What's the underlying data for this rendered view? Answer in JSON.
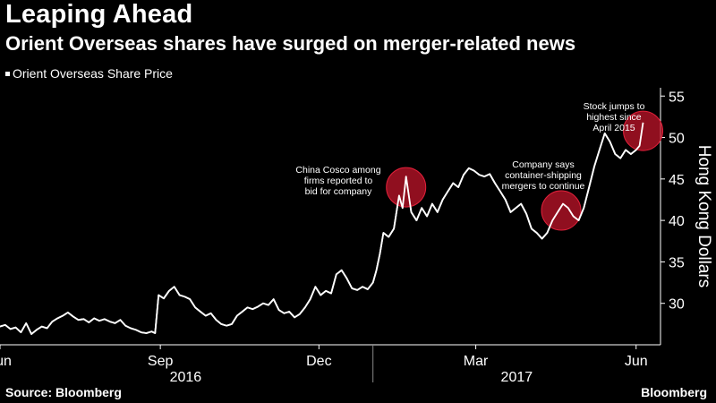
{
  "header": {
    "title": "Leaping Ahead",
    "subtitle": "Orient Overseas shares have surged on merger-related news"
  },
  "footer": {
    "source": "Source: Bloomberg",
    "brand": "Bloomberg"
  },
  "colors": {
    "background": "#000000",
    "line": "#ffffff",
    "highlight": "#c0142a"
  },
  "chart_data": {
    "type": "line",
    "title": "Leaping Ahead",
    "subtitle": "Orient Overseas shares have surged on merger-related news",
    "legend": [
      "Orient Overseas Share Price"
    ],
    "legend_position": "top-left",
    "ylabel": "Hong Kong Dollars",
    "ylim": [
      25,
      56
    ],
    "yticks": [
      30,
      35,
      40,
      45,
      50,
      55
    ],
    "xrange": [
      "2016-06-01",
      "2017-06-15"
    ],
    "xticks": [
      {
        "date": "2016-06-01",
        "label": "Jun"
      },
      {
        "date": "2016-09-01",
        "label": "Sep"
      },
      {
        "date": "2016-12-01",
        "label": "Dec"
      },
      {
        "date": "2017-03-01",
        "label": "Mar"
      },
      {
        "date": "2017-06-01",
        "label": "Jun"
      }
    ],
    "year_labels": [
      {
        "text": "2016",
        "from": "2016-06-01",
        "to": "2016-12-31"
      },
      {
        "text": "2017",
        "from": "2017-01-01",
        "to": "2017-06-15"
      }
    ],
    "grid": false,
    "series": [
      {
        "name": "Orient Overseas Share Price",
        "points": [
          [
            "2016-06-01",
            27.2
          ],
          [
            "2016-06-04",
            27.4
          ],
          [
            "2016-06-07",
            26.9
          ],
          [
            "2016-06-10",
            27.1
          ],
          [
            "2016-06-13",
            26.5
          ],
          [
            "2016-06-16",
            27.6
          ],
          [
            "2016-06-19",
            26.3
          ],
          [
            "2016-06-22",
            26.8
          ],
          [
            "2016-06-25",
            27.2
          ],
          [
            "2016-06-28",
            27.0
          ],
          [
            "2016-07-01",
            27.8
          ],
          [
            "2016-07-04",
            28.2
          ],
          [
            "2016-07-07",
            28.5
          ],
          [
            "2016-07-10",
            28.9
          ],
          [
            "2016-07-13",
            28.4
          ],
          [
            "2016-07-16",
            28.0
          ],
          [
            "2016-07-19",
            28.1
          ],
          [
            "2016-07-22",
            27.7
          ],
          [
            "2016-07-25",
            28.2
          ],
          [
            "2016-07-28",
            27.9
          ],
          [
            "2016-07-31",
            28.1
          ],
          [
            "2016-08-03",
            27.8
          ],
          [
            "2016-08-06",
            27.6
          ],
          [
            "2016-08-09",
            28.0
          ],
          [
            "2016-08-12",
            27.3
          ],
          [
            "2016-08-15",
            27.0
          ],
          [
            "2016-08-18",
            26.8
          ],
          [
            "2016-08-21",
            26.5
          ],
          [
            "2016-08-24",
            26.4
          ],
          [
            "2016-08-27",
            26.6
          ],
          [
            "2016-08-29",
            26.4
          ],
          [
            "2016-08-31",
            31.0
          ],
          [
            "2016-09-03",
            30.6
          ],
          [
            "2016-09-06",
            31.5
          ],
          [
            "2016-09-09",
            32.0
          ],
          [
            "2016-09-12",
            31.0
          ],
          [
            "2016-09-15",
            30.8
          ],
          [
            "2016-09-18",
            30.5
          ],
          [
            "2016-09-21",
            29.5
          ],
          [
            "2016-09-24",
            29.0
          ],
          [
            "2016-09-27",
            28.5
          ],
          [
            "2016-09-30",
            28.8
          ],
          [
            "2016-10-03",
            28.0
          ],
          [
            "2016-10-06",
            27.5
          ],
          [
            "2016-10-09",
            27.3
          ],
          [
            "2016-10-12",
            27.5
          ],
          [
            "2016-10-15",
            28.5
          ],
          [
            "2016-10-18",
            29.0
          ],
          [
            "2016-10-21",
            29.5
          ],
          [
            "2016-10-24",
            29.3
          ],
          [
            "2016-10-27",
            29.6
          ],
          [
            "2016-10-30",
            30.0
          ],
          [
            "2016-11-02",
            29.8
          ],
          [
            "2016-11-05",
            30.5
          ],
          [
            "2016-11-08",
            29.2
          ],
          [
            "2016-11-11",
            28.8
          ],
          [
            "2016-11-14",
            29.0
          ],
          [
            "2016-11-17",
            28.3
          ],
          [
            "2016-11-20",
            28.7
          ],
          [
            "2016-11-23",
            29.5
          ],
          [
            "2016-11-26",
            30.5
          ],
          [
            "2016-11-29",
            32.0
          ],
          [
            "2016-12-02",
            31.0
          ],
          [
            "2016-12-05",
            31.5
          ],
          [
            "2016-12-08",
            31.2
          ],
          [
            "2016-12-11",
            33.5
          ],
          [
            "2016-12-14",
            34.0
          ],
          [
            "2016-12-17",
            33.0
          ],
          [
            "2016-12-20",
            31.8
          ],
          [
            "2016-12-23",
            31.6
          ],
          [
            "2016-12-26",
            32.0
          ],
          [
            "2016-12-29",
            31.7
          ],
          [
            "2017-01-01",
            32.5
          ],
          [
            "2017-01-03",
            34.0
          ],
          [
            "2017-01-05",
            36.0
          ],
          [
            "2017-01-07",
            38.5
          ],
          [
            "2017-01-10",
            38.0
          ],
          [
            "2017-01-13",
            39.0
          ],
          [
            "2017-01-16",
            43.0
          ],
          [
            "2017-01-18",
            41.5
          ],
          [
            "2017-01-20",
            45.3
          ],
          [
            "2017-01-23",
            41.0
          ],
          [
            "2017-01-26",
            40.0
          ],
          [
            "2017-01-29",
            41.5
          ],
          [
            "2017-02-01",
            40.5
          ],
          [
            "2017-02-04",
            42.0
          ],
          [
            "2017-02-07",
            41.0
          ],
          [
            "2017-02-10",
            42.5
          ],
          [
            "2017-02-13",
            43.5
          ],
          [
            "2017-02-16",
            44.5
          ],
          [
            "2017-02-19",
            44.0
          ],
          [
            "2017-02-22",
            45.5
          ],
          [
            "2017-02-25",
            46.3
          ],
          [
            "2017-02-28",
            46.0
          ],
          [
            "2017-03-03",
            45.5
          ],
          [
            "2017-03-06",
            45.3
          ],
          [
            "2017-03-09",
            45.6
          ],
          [
            "2017-03-12",
            44.5
          ],
          [
            "2017-03-15",
            43.5
          ],
          [
            "2017-03-18",
            42.5
          ],
          [
            "2017-03-21",
            41.0
          ],
          [
            "2017-03-24",
            41.5
          ],
          [
            "2017-03-27",
            42.0
          ],
          [
            "2017-03-30",
            40.8
          ],
          [
            "2017-04-02",
            39.0
          ],
          [
            "2017-04-05",
            38.5
          ],
          [
            "2017-04-08",
            37.8
          ],
          [
            "2017-04-11",
            38.5
          ],
          [
            "2017-04-14",
            40.0
          ],
          [
            "2017-04-17",
            41.0
          ],
          [
            "2017-04-20",
            42.0
          ],
          [
            "2017-04-23",
            41.5
          ],
          [
            "2017-04-26",
            40.5
          ],
          [
            "2017-04-29",
            40.0
          ],
          [
            "2017-05-02",
            41.5
          ],
          [
            "2017-05-05",
            44.0
          ],
          [
            "2017-05-08",
            46.5
          ],
          [
            "2017-05-11",
            48.5
          ],
          [
            "2017-05-14",
            50.5
          ],
          [
            "2017-05-17",
            49.5
          ],
          [
            "2017-05-20",
            48.0
          ],
          [
            "2017-05-23",
            47.5
          ],
          [
            "2017-05-26",
            48.5
          ],
          [
            "2017-05-29",
            48.0
          ],
          [
            "2017-06-01",
            48.5
          ],
          [
            "2017-06-03",
            49.0
          ],
          [
            "2017-06-05",
            51.8
          ]
        ]
      }
    ],
    "annotations": [
      {
        "text": [
          "China Cosco among",
          "firms reported to",
          "bid for company"
        ],
        "date": "2017-01-20",
        "value": 44.0
      },
      {
        "text": [
          "Company says",
          "container-shipping",
          "mergers to continue"
        ],
        "date": "2017-04-19",
        "value": 41.2
      },
      {
        "text": [
          "Stock jumps to",
          "highest since",
          "April 2015"
        ],
        "date": "2017-06-05",
        "value": 50.8
      }
    ]
  }
}
